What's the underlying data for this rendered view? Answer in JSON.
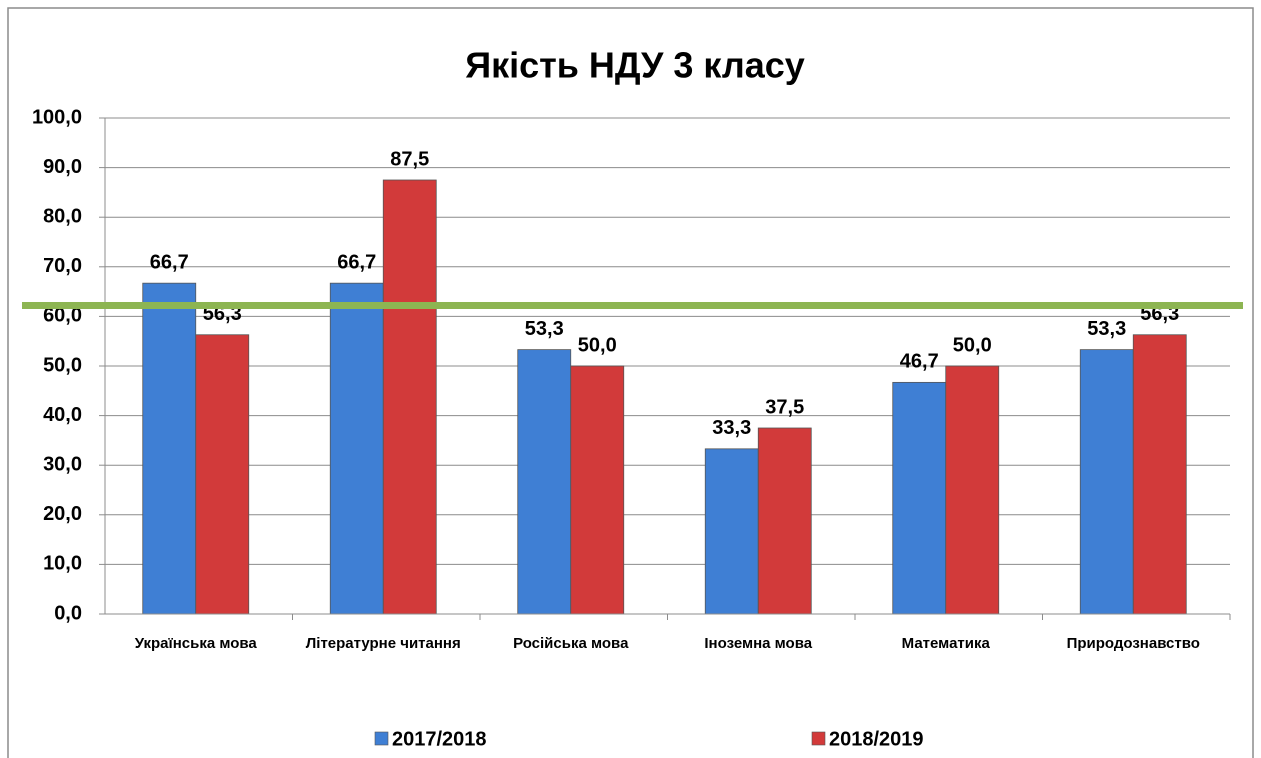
{
  "chart_data": {
    "type": "bar",
    "title": "Якість НДУ 3 класу",
    "categories": [
      "Українська мова",
      "Літературне читання",
      "Російська мова",
      "Іноземна мова",
      "Математика",
      "Природознавство"
    ],
    "series": [
      {
        "name": "2017/2018",
        "color": "#3f7fd4",
        "values": [
          66.7,
          66.7,
          53.3,
          33.3,
          46.7,
          53.3
        ],
        "value_labels": [
          "66,7",
          "66,7",
          "53,3",
          "33,3",
          "46,7",
          "53,3"
        ]
      },
      {
        "name": "2018/2019",
        "color": "#d23a3a",
        "values": [
          56.3,
          87.5,
          50.0,
          37.5,
          50.0,
          56.3
        ],
        "value_labels": [
          "56,3",
          "87,5",
          "50,0",
          "37,5",
          "50,0",
          "56,3"
        ]
      }
    ],
    "ylim": [
      0,
      100
    ],
    "yticks": [
      {
        "value": 0,
        "label": "0,0"
      },
      {
        "value": 10,
        "label": "10,0"
      },
      {
        "value": 20,
        "label": "20,0"
      },
      {
        "value": 30,
        "label": "30,0"
      },
      {
        "value": 40,
        "label": "40,0"
      },
      {
        "value": 50,
        "label": "50,0"
      },
      {
        "value": 60,
        "label": "60,0"
      },
      {
        "value": 70,
        "label": "70,0"
      },
      {
        "value": 80,
        "label": "80,0"
      },
      {
        "value": 90,
        "label": "90,0"
      },
      {
        "value": 100,
        "label": "100,0"
      }
    ],
    "grid": true,
    "reference_line": {
      "value": 62.2,
      "color": "#8db552"
    },
    "legend": "bottom"
  }
}
